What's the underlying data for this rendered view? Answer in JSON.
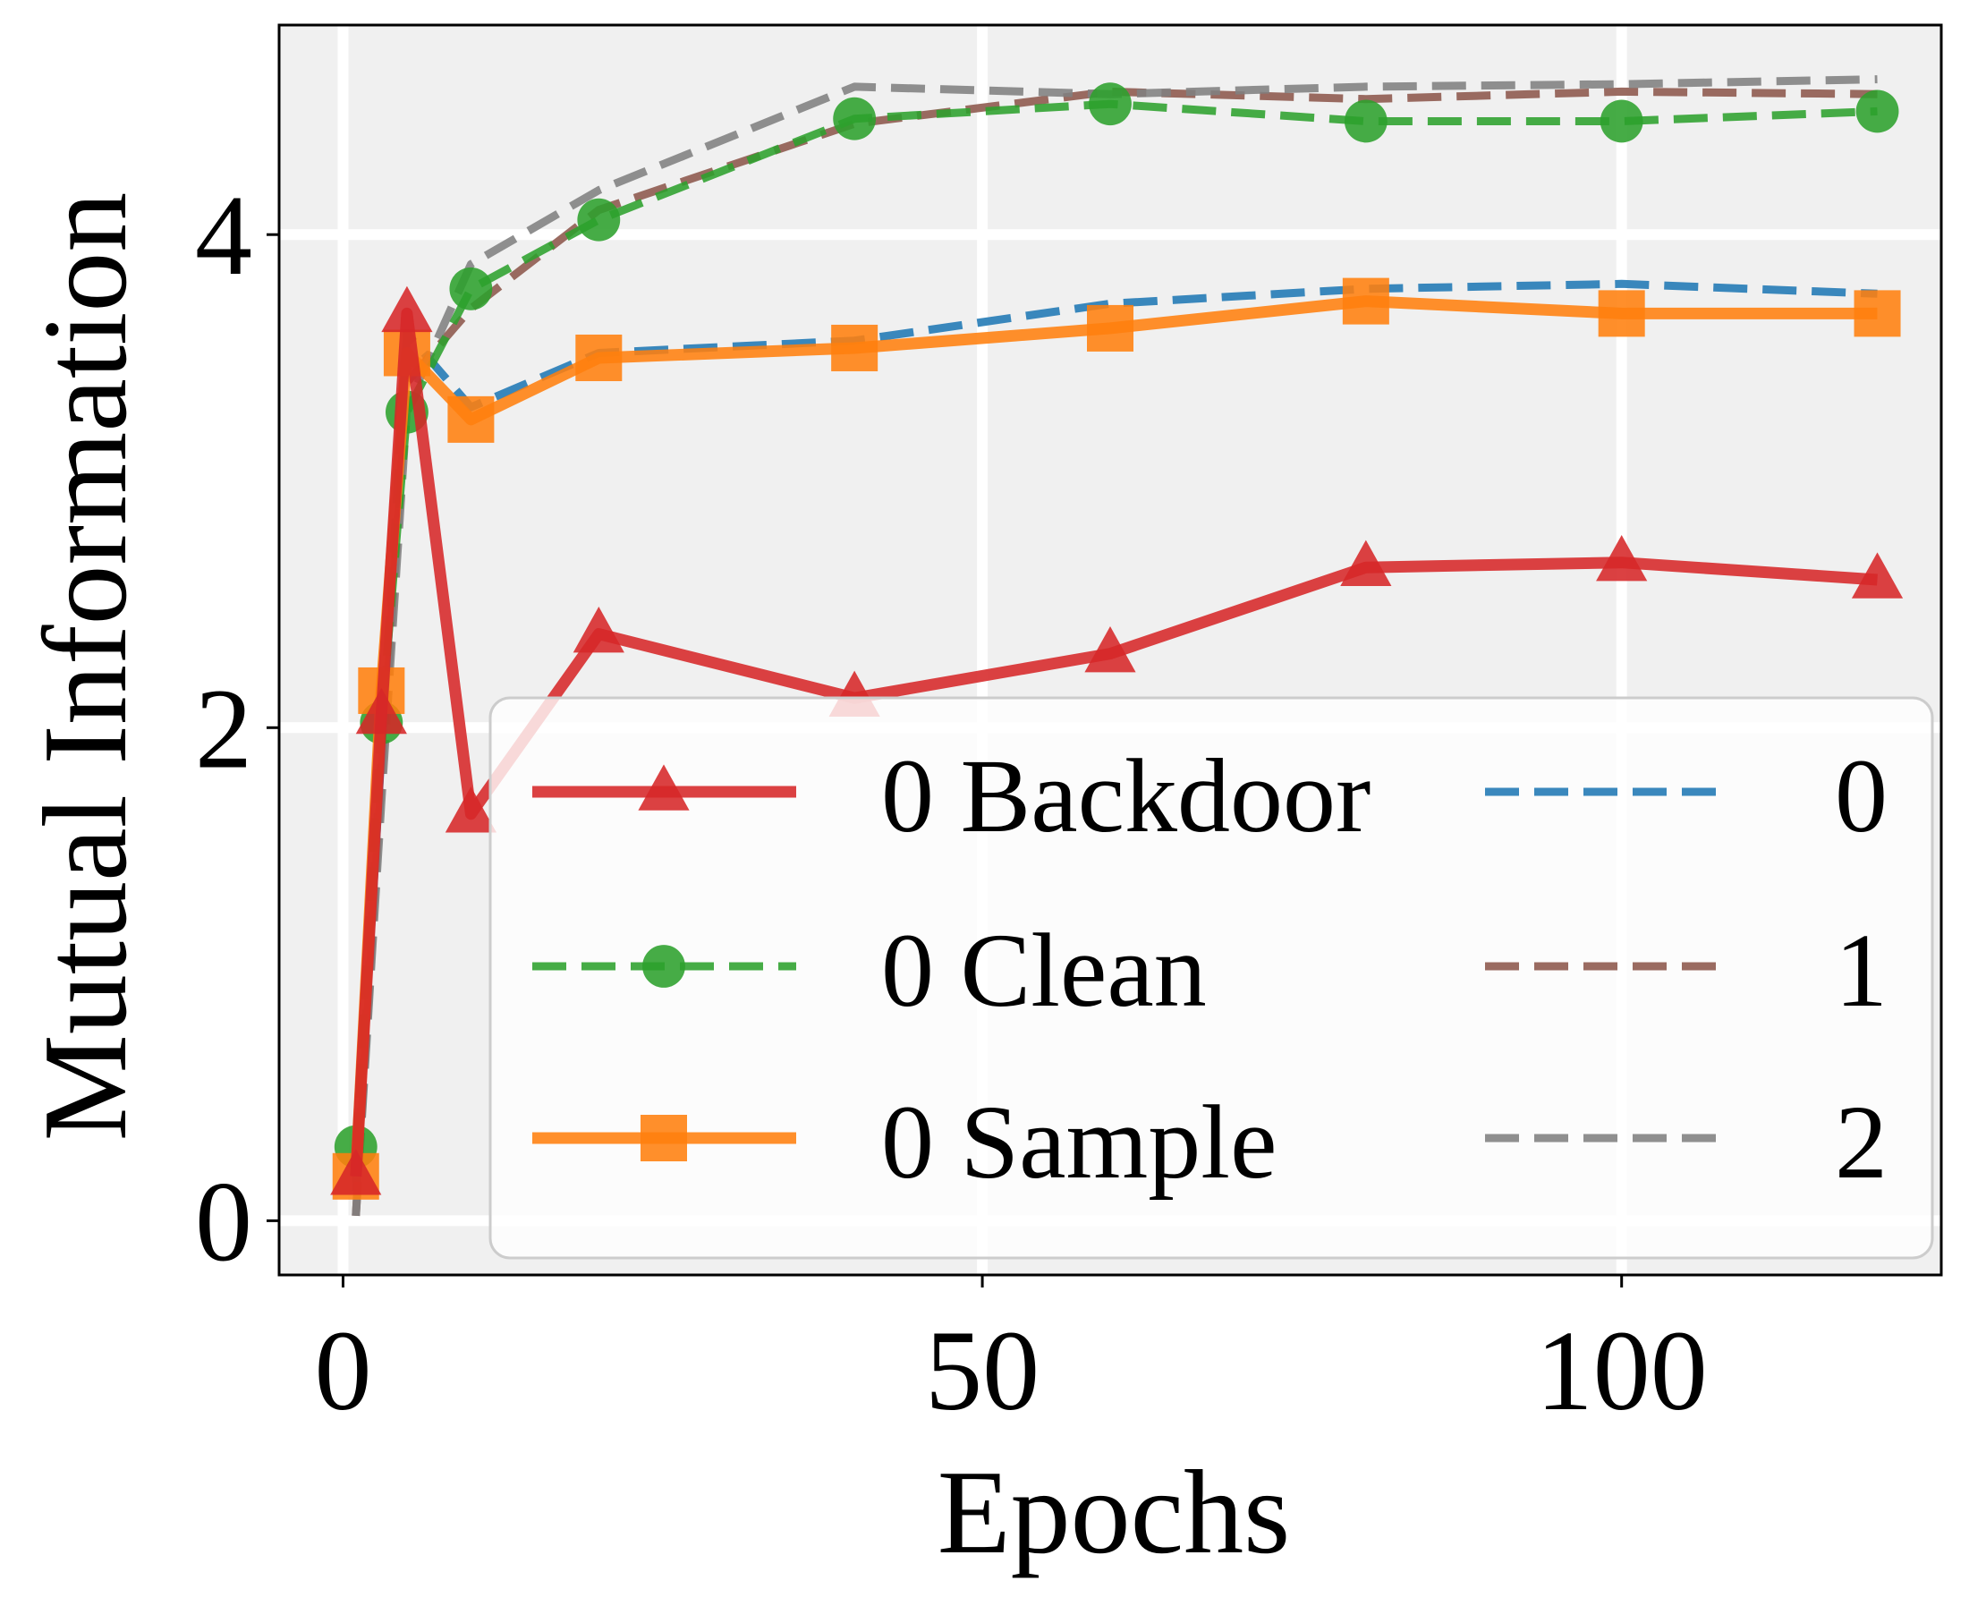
{
  "chart_data": {
    "type": "line",
    "xlabel": "Epochs",
    "ylabel": "Mutual Information",
    "xlim": [
      -5,
      125
    ],
    "ylim": [
      -0.22,
      4.85
    ],
    "x_ticks": [
      0,
      50,
      100
    ],
    "y_ticks": [
      0,
      2,
      4
    ],
    "grid": true,
    "legend_position": "lower-right",
    "legend_columns": 2,
    "series": [
      {
        "name": "0 Backdoor",
        "color": "#d62728",
        "line_style": "solid",
        "marker": "triangle",
        "x": [
          1,
          3,
          5,
          10,
          20,
          40,
          60,
          80,
          100,
          120
        ],
        "y": [
          0.18,
          2.05,
          3.68,
          1.65,
          2.38,
          2.12,
          2.3,
          2.65,
          2.67,
          2.6
        ]
      },
      {
        "name": "0 Clean",
        "color": "#2ca02c",
        "line_style": "dashed",
        "marker": "circle",
        "x": [
          1,
          3,
          5,
          10,
          20,
          40,
          60,
          80,
          100,
          120
        ],
        "y": [
          0.3,
          2.02,
          3.28,
          3.78,
          4.06,
          4.47,
          4.53,
          4.46,
          4.46,
          4.5
        ]
      },
      {
        "name": "0 Sample",
        "color": "#ff7f0e",
        "line_style": "solid",
        "marker": "square",
        "x": [
          1,
          3,
          5,
          10,
          20,
          40,
          60,
          80,
          100,
          120
        ],
        "y": [
          0.18,
          2.15,
          3.52,
          3.25,
          3.5,
          3.54,
          3.62,
          3.73,
          3.68,
          3.68
        ]
      },
      {
        "name": "0",
        "color": "#1f77b4",
        "line_style": "dashed",
        "marker": "none",
        "x": [
          1,
          3,
          5,
          10,
          20,
          40,
          60,
          80,
          100,
          120
        ],
        "y": [
          0.12,
          1.9,
          3.6,
          3.3,
          3.52,
          3.57,
          3.72,
          3.78,
          3.8,
          3.76
        ]
      },
      {
        "name": "1",
        "color": "#8c564b",
        "line_style": "dashed",
        "marker": "none",
        "x": [
          1,
          3,
          5,
          10,
          20,
          40,
          60,
          80,
          100,
          120
        ],
        "y": [
          0.02,
          1.8,
          3.4,
          3.7,
          4.1,
          4.45,
          4.58,
          4.55,
          4.58,
          4.57
        ]
      },
      {
        "name": "2",
        "color": "#7f7f7f",
        "line_style": "dashed",
        "marker": "none",
        "x": [
          1,
          3,
          5,
          10,
          20,
          40,
          60,
          80,
          100,
          120
        ],
        "y": [
          0.02,
          1.7,
          3.3,
          3.88,
          4.18,
          4.6,
          4.57,
          4.6,
          4.61,
          4.63
        ]
      }
    ]
  }
}
